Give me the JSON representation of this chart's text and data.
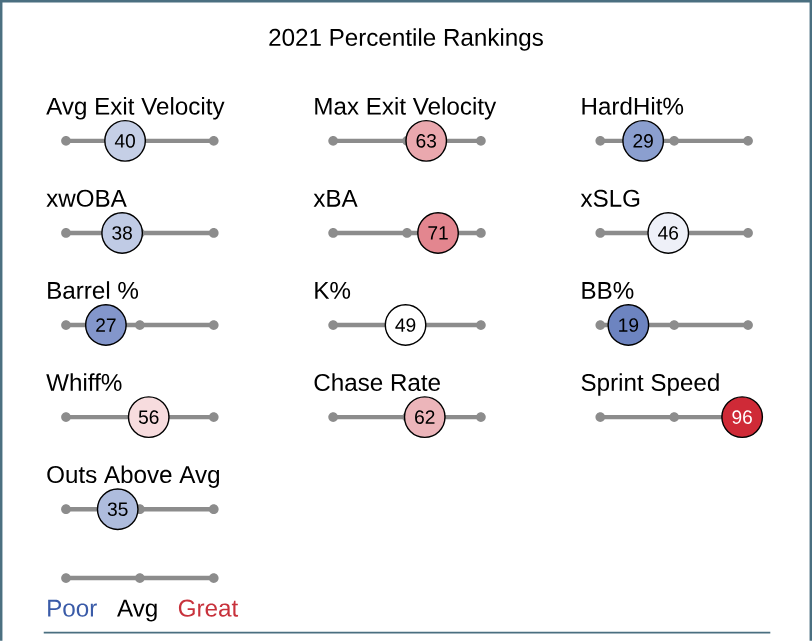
{
  "chart_data": {
    "type": "other",
    "title": "2021 Percentile Rankings",
    "categories": [
      "Avg Exit Velocity",
      "Max Exit Velocity",
      "HardHit%",
      "xwOBA",
      "xBA",
      "xSLG",
      "Barrel %",
      "K%",
      "BB%",
      "Whiff%",
      "Chase Rate",
      "Sprint Speed",
      "Outs Above Avg"
    ],
    "values": [
      40,
      63,
      29,
      38,
      71,
      46,
      27,
      49,
      19,
      56,
      62,
      96,
      35
    ],
    "colors": [
      "#c5cfe6",
      "#eaa8ae",
      "#8b9fcf",
      "#c0cbe5",
      "#e3868f",
      "#eef0f8",
      "#8396cb",
      "#ffffff",
      "#6d84c0",
      "#f7dcde",
      "#ecb5ba",
      "#cf2a37",
      "#aebcdd"
    ],
    "data_labels": true,
    "annotations": [
      "Poor",
      "Avg",
      "Great"
    ]
  }
}
